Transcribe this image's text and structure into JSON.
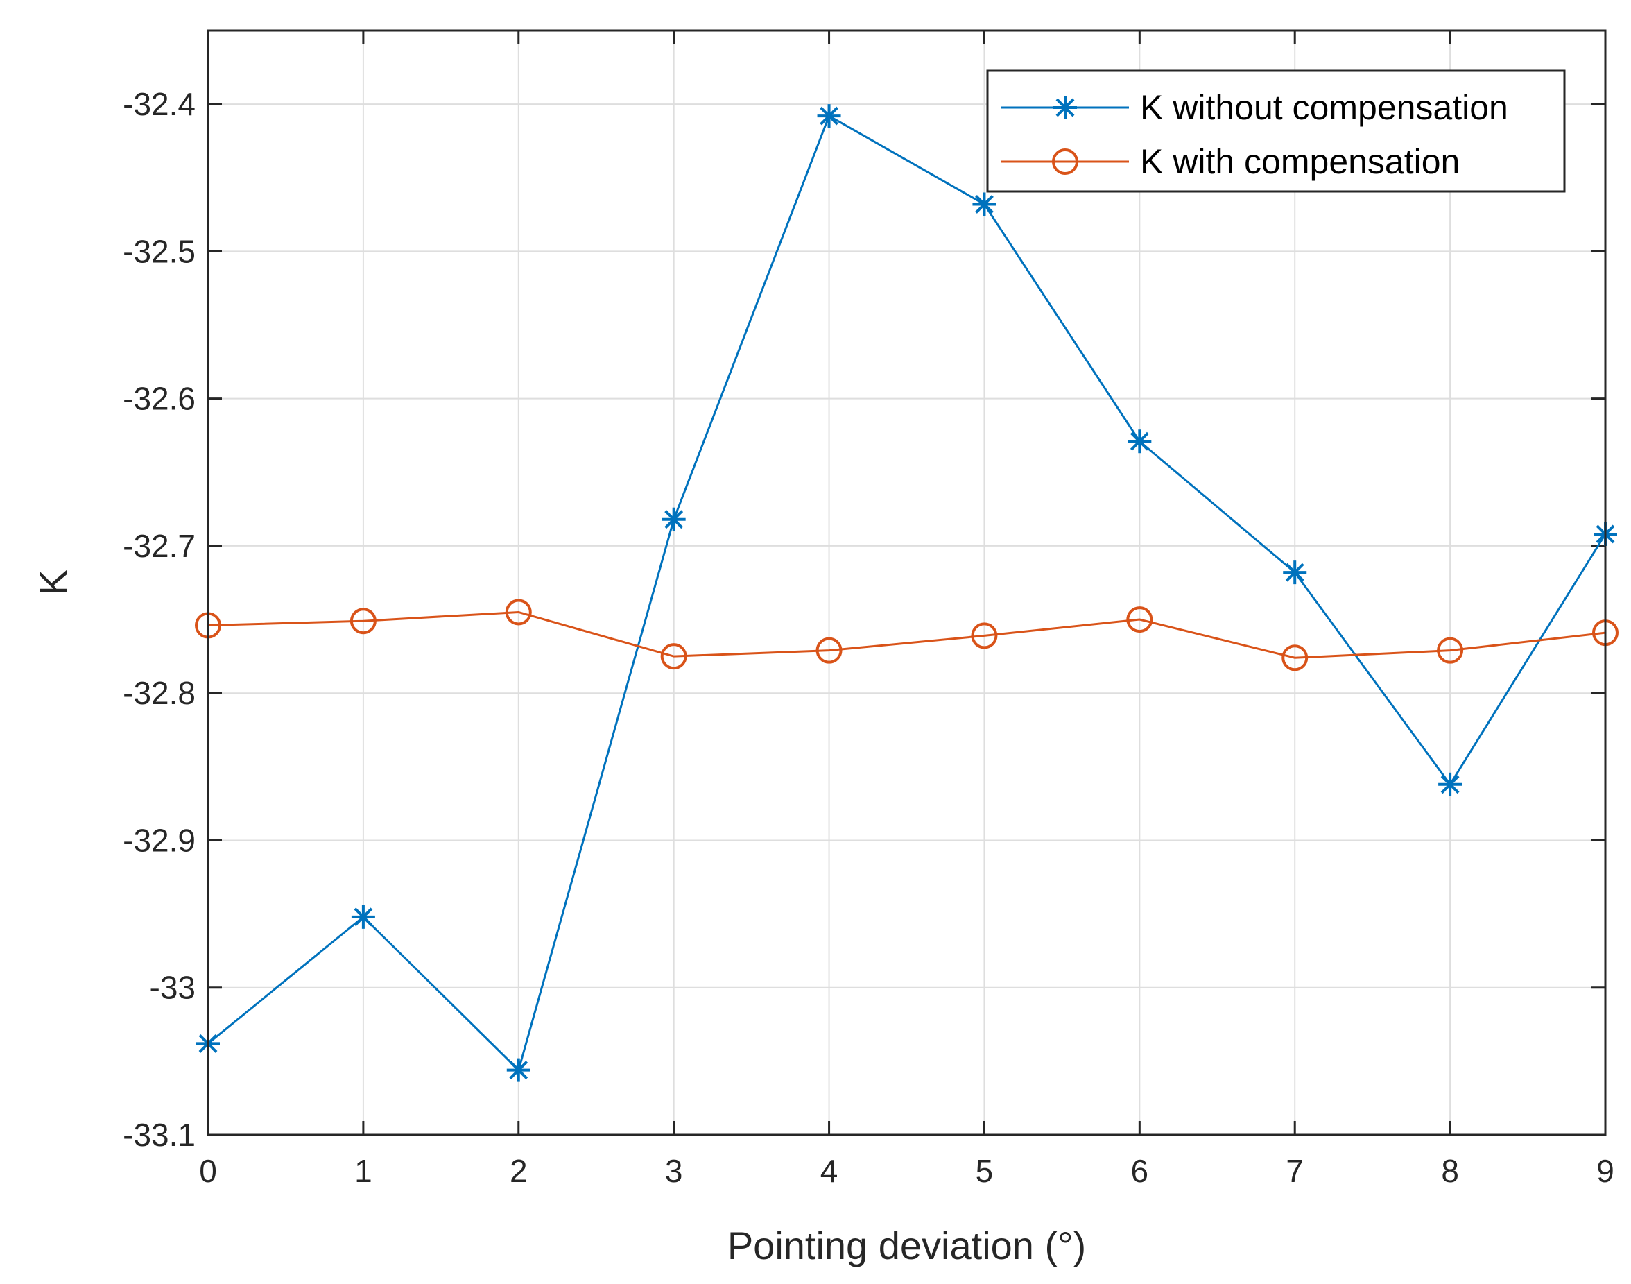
{
  "chart_data": {
    "type": "line",
    "title": "",
    "xlabel": "Pointing deviation (°)",
    "ylabel": "K",
    "x": [
      0,
      1,
      2,
      3,
      4,
      5,
      6,
      7,
      8,
      9
    ],
    "xlim": [
      0,
      9
    ],
    "ylim": [
      -33.1,
      -32.35
    ],
    "xticks": [
      0,
      1,
      2,
      3,
      4,
      5,
      6,
      7,
      8,
      9
    ],
    "yticks": [
      -33.1,
      -33,
      -32.9,
      -32.8,
      -32.7,
      -32.6,
      -32.5,
      -32.4
    ],
    "xtick_labels": [
      "0",
      "1",
      "2",
      "3",
      "4",
      "5",
      "6",
      "7",
      "8",
      "9"
    ],
    "ytick_labels": [
      "-33.1",
      "-33",
      "-32.9",
      "-32.8",
      "-32.7",
      "-32.6",
      "-32.5",
      "-32.4"
    ],
    "grid": true,
    "legend_position": "top-right",
    "series": [
      {
        "name": "K without compensation",
        "color": "#0072BD",
        "marker": "asterisk",
        "values": [
          -33.038,
          -32.952,
          -33.056,
          -32.682,
          -32.408,
          -32.468,
          -32.629,
          -32.718,
          -32.862,
          -32.692
        ]
      },
      {
        "name": "K with compensation",
        "color": "#D95319",
        "marker": "circle",
        "values": [
          -32.754,
          -32.751,
          -32.745,
          -32.775,
          -32.771,
          -32.761,
          -32.75,
          -32.776,
          -32.771,
          -32.759
        ]
      }
    ]
  }
}
